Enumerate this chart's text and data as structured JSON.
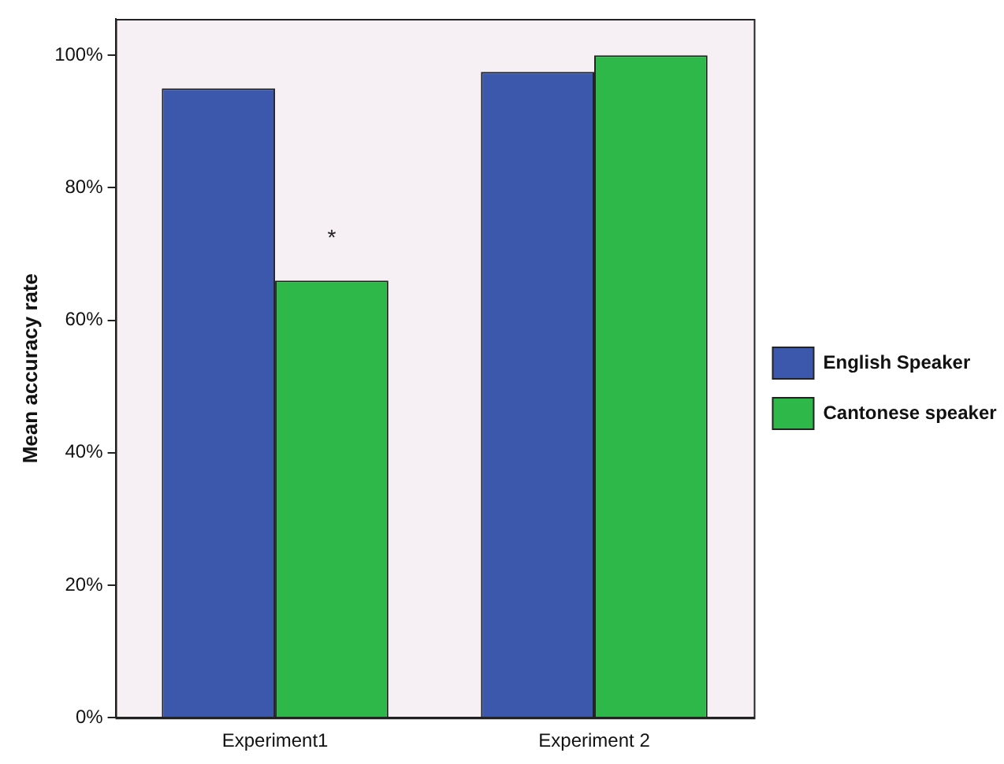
{
  "chart_data": {
    "type": "bar",
    "ylabel": "Mean accuracy rate",
    "categories": [
      "Experiment1",
      "Experiment 2"
    ],
    "series": [
      {
        "name": "English Speaker",
        "color": "#3c58ac",
        "values": [
          95,
          97.5
        ]
      },
      {
        "name": "Cantonese speaker",
        "color": "#2eb84a",
        "values": [
          66,
          100
        ]
      }
    ],
    "ylim": [
      0,
      105.5
    ],
    "yticks": [
      {
        "value": 0,
        "label": "0%"
      },
      {
        "value": 20,
        "label": "20%"
      },
      {
        "value": 40,
        "label": "40%"
      },
      {
        "value": 60,
        "label": "60%"
      },
      {
        "value": 80,
        "label": "80%"
      },
      {
        "value": 100,
        "label": "100%"
      }
    ],
    "annotations": [
      {
        "text": "*",
        "x": "Experiment1",
        "y": 72.5
      }
    ],
    "grid": false,
    "legend": "right"
  }
}
